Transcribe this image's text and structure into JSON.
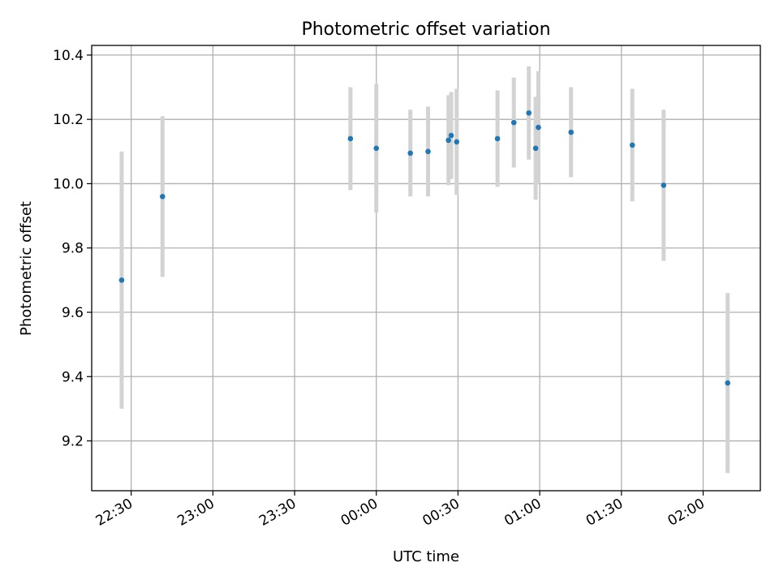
{
  "chart_data": {
    "type": "scatter",
    "title": "Photometric offset variation",
    "xlabel": "UTC time",
    "ylabel": "Photometric offset",
    "x_axis": "time",
    "xlim": [
      "22:15:30",
      "02:21:00"
    ],
    "ylim": [
      9.045,
      10.43
    ],
    "xticks": [
      {
        "time": "22:30:00",
        "label": "22:30"
      },
      {
        "time": "23:00:00",
        "label": "23:00"
      },
      {
        "time": "23:30:00",
        "label": "23:30"
      },
      {
        "time": "00:00:00",
        "label": "00:00"
      },
      {
        "time": "00:30:00",
        "label": "00:30"
      },
      {
        "time": "01:00:00",
        "label": "01:00"
      },
      {
        "time": "01:30:00",
        "label": "01:30"
      },
      {
        "time": "02:00:00",
        "label": "02:00"
      }
    ],
    "yticks": [
      {
        "value": 9.2,
        "label": "9.2"
      },
      {
        "value": 9.4,
        "label": "9.4"
      },
      {
        "value": 9.6,
        "label": "9.6"
      },
      {
        "value": 9.8,
        "label": "9.8"
      },
      {
        "value": 10.0,
        "label": "10.0"
      },
      {
        "value": 10.2,
        "label": "10.2"
      },
      {
        "value": 10.4,
        "label": "10.4"
      }
    ],
    "grid": true,
    "colors": {
      "point": "#1f77b4",
      "errorbar": "#d3d3d3",
      "grid": "#b0b0b0"
    },
    "points": [
      {
        "time": "22:26:30",
        "y": 9.7,
        "err": 0.4
      },
      {
        "time": "22:41:30",
        "y": 9.96,
        "err": 0.25
      },
      {
        "time": "23:50:30",
        "y": 10.14,
        "err": 0.16
      },
      {
        "time": "00:00:00",
        "y": 10.11,
        "err": 0.2
      },
      {
        "time": "00:12:30",
        "y": 10.095,
        "err": 0.135
      },
      {
        "time": "00:19:00",
        "y": 10.1,
        "err": 0.14
      },
      {
        "time": "00:26:30",
        "y": 10.135,
        "err": 0.14
      },
      {
        "time": "00:27:30",
        "y": 10.15,
        "err": 0.135
      },
      {
        "time": "00:29:30",
        "y": 10.13,
        "err": 0.165
      },
      {
        "time": "00:44:30",
        "y": 10.14,
        "err": 0.15
      },
      {
        "time": "00:50:30",
        "y": 10.19,
        "err": 0.14
      },
      {
        "time": "00:56:00",
        "y": 10.22,
        "err": 0.145
      },
      {
        "time": "00:58:30",
        "y": 10.11,
        "err": 0.16
      },
      {
        "time": "00:59:30",
        "y": 10.175,
        "err": 0.175
      },
      {
        "time": "01:11:30",
        "y": 10.16,
        "err": 0.14
      },
      {
        "time": "01:34:00",
        "y": 10.12,
        "err": 0.175
      },
      {
        "time": "01:45:30",
        "y": 9.995,
        "err": 0.235
      },
      {
        "time": "02:09:00",
        "y": 9.38,
        "err": 0.28
      }
    ]
  }
}
